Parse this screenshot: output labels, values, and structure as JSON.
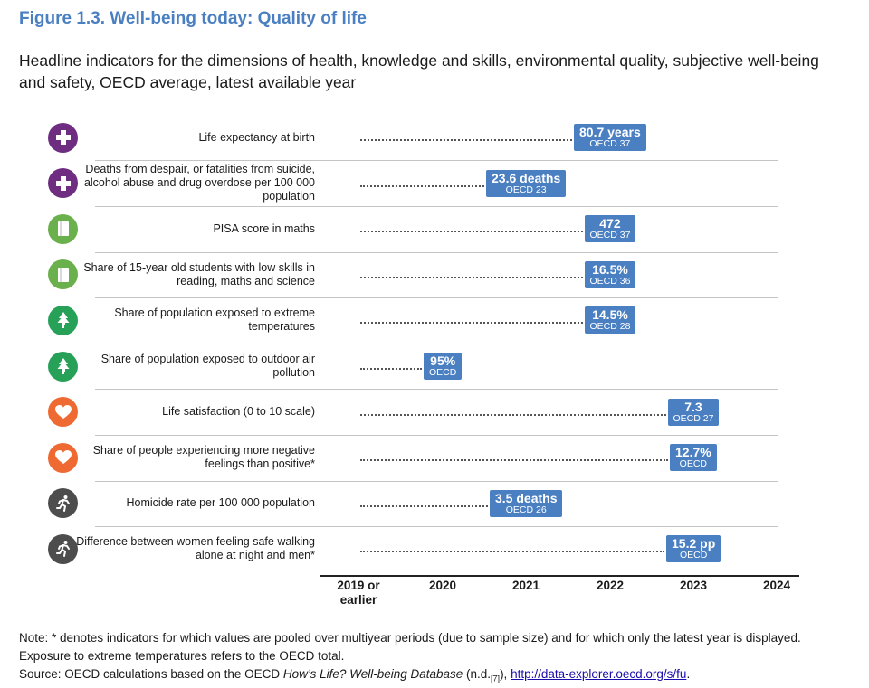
{
  "title": "Figure 1.3. Well-being today: Quality of life",
  "subtitle": "Headline indicators for the dimensions of health, knowledge and skills, environmental quality, subjective well-being and safety, OECD average, latest available year",
  "colors": {
    "accent": "#4a7fc1",
    "health": "#6e2d80",
    "knowledge": "#6ab04c",
    "environment": "#27a157",
    "subjective": "#ee6a32",
    "safety": "#4d4d4d"
  },
  "chart_data": {
    "type": "table",
    "x_axis_categories": [
      "2019 or earlier",
      "2020",
      "2021",
      "2022",
      "2023",
      "2024"
    ],
    "rows": [
      {
        "icon": "health-cross-icon",
        "dimension": "health",
        "label": "Life expectancy at birth",
        "year": "2022",
        "value": "80.7 years",
        "countries": "OECD  37"
      },
      {
        "icon": "health-cross-icon",
        "dimension": "health",
        "label": "Deaths from despair, or fatalities from suicide, alcohol abuse and drug overdose per 100 000 population",
        "year": "2021",
        "value": "23.6 deaths",
        "countries": "OECD  23"
      },
      {
        "icon": "book-icon",
        "dimension": "knowledge",
        "label": "PISA score in maths",
        "year": "2022",
        "value": "472",
        "countries": "OECD  37"
      },
      {
        "icon": "book-icon",
        "dimension": "knowledge",
        "label": "Share of 15-year old students with low skills in reading, maths and science",
        "year": "2022",
        "value": "16.5%",
        "countries": "OECD  36"
      },
      {
        "icon": "tree-icon",
        "dimension": "environment",
        "label": "Share of population exposed to extreme temperatures",
        "year": "2022",
        "value": "14.5%",
        "countries": "OECD  28"
      },
      {
        "icon": "tree-icon",
        "dimension": "environment",
        "label": "Share of population exposed to outdoor air pollution",
        "year": "2020",
        "value": "95%",
        "countries": "OECD"
      },
      {
        "icon": "heart-icon",
        "dimension": "subjective",
        "label": "Life satisfaction (0 to 10 scale)",
        "year": "2023",
        "value": "7.3",
        "countries": "OECD  27"
      },
      {
        "icon": "heart-icon",
        "dimension": "subjective",
        "label": "Share of people experiencing more negative feelings than positive*",
        "year": "2023",
        "value": "12.7%",
        "countries": "OECD"
      },
      {
        "icon": "running-person-icon",
        "dimension": "safety",
        "label": "Homicide rate per 100 000 population",
        "year": "2021",
        "value": "3.5 deaths",
        "countries": "OECD  26"
      },
      {
        "icon": "running-person-icon",
        "dimension": "safety",
        "label": "Difference between women feeling safe walking alone at night and men*",
        "year": "2023",
        "value": "15.2 pp",
        "countries": "OECD"
      }
    ]
  },
  "note": {
    "line1": "Note: * denotes indicators for which values are pooled over multiyear periods (due to sample size) and for which only the latest year is displayed.",
    "line2": "Exposure to extreme temperatures refers to the OECD total.",
    "source_prefix": "Source: OECD calculations based on the OECD ",
    "source_italic": "How’s Life? Well-being Database",
    "source_mid": " (n.d.",
    "source_ref": "[7]",
    "source_after": "), ",
    "source_link": "http://data-explorer.oecd.org/s/fu",
    "source_end": "."
  }
}
